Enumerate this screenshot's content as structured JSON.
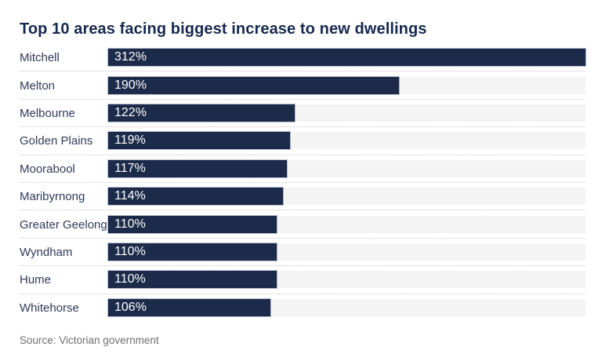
{
  "header": {
    "title": "Top 10 areas facing biggest increase to new dwellings"
  },
  "footer": {
    "source": "Source: Victorian government"
  },
  "colors": {
    "bar_fill": "#1d2b4a",
    "bar_outline": "rgba(130,142,175,0.55)",
    "track_fill": "#f4f4f4",
    "title_text": "#16294e",
    "label_text": "#2e3b58",
    "value_text": "#ffffff",
    "separator": "#c9c9c9",
    "source_text": "#6f6f6f",
    "background": "#ffffff"
  },
  "chart_data": {
    "type": "bar",
    "orientation": "horizontal",
    "title": "Top 10 areas facing biggest increase to new dwellings",
    "categories": [
      "Mitchell",
      "Melton",
      "Melbourne",
      "Golden Plains",
      "Moorabool",
      "Maribyrnong",
      "Greater Geelong",
      "Wyndham",
      "Hume",
      "Whitehorse"
    ],
    "values": [
      312,
      190,
      122,
      119,
      117,
      114,
      110,
      110,
      110,
      106
    ],
    "value_labels": [
      "312%",
      "190%",
      "122%",
      "119%",
      "117%",
      "114%",
      "110%",
      "110%",
      "110%",
      "106%"
    ],
    "unit": "%",
    "xlim": [
      0,
      312
    ],
    "value_label_position": "inside-start",
    "grid": "off",
    "legend": "none",
    "row_separator": "dotted",
    "source": "Source: Victorian government"
  }
}
